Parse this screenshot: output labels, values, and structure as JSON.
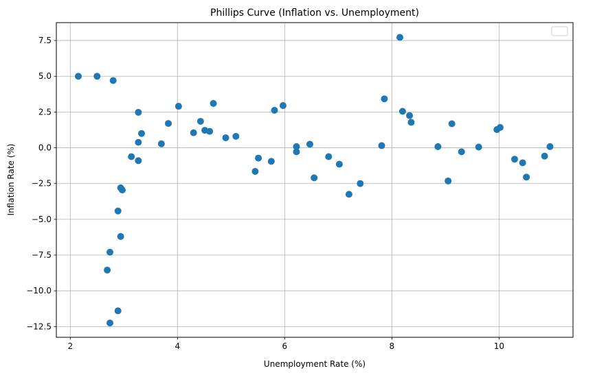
{
  "chart_data": {
    "type": "scatter",
    "title": "Phillips Curve (Inflation vs. Unemployment)",
    "xlabel": "Unemployment Rate (%)",
    "ylabel": "Inflation Rate (%)",
    "xlim": [
      1.74,
      11.38
    ],
    "ylim": [
      -13.25,
      8.75
    ],
    "xticks": [
      2,
      4,
      6,
      8,
      10
    ],
    "yticks": [
      -12.5,
      -10.0,
      -7.5,
      -5.0,
      -2.5,
      0.0,
      2.5,
      5.0,
      7.5
    ],
    "xtick_labels": [
      "2",
      "4",
      "6",
      "8",
      "10"
    ],
    "ytick_labels": [
      "−12.5",
      "−10.0",
      "−7.5",
      "−5.0",
      "−2.5",
      "0.0",
      "2.5",
      "5.0",
      "7.5"
    ],
    "grid": true,
    "legend": "top-right, empty",
    "series": [
      {
        "color": "#1f77b4",
        "points": [
          [
            2.15,
            5.0
          ],
          [
            2.5,
            5.0
          ],
          [
            2.8,
            4.7
          ],
          [
            3.27,
            2.48
          ],
          [
            3.27,
            0.38
          ],
          [
            3.27,
            -0.9
          ],
          [
            3.33,
            1.0
          ],
          [
            3.14,
            -0.62
          ],
          [
            2.94,
            -2.8
          ],
          [
            2.97,
            -2.95
          ],
          [
            2.89,
            -4.42
          ],
          [
            2.94,
            -6.2
          ],
          [
            2.74,
            -7.3
          ],
          [
            2.69,
            -8.55
          ],
          [
            2.89,
            -11.4
          ],
          [
            2.74,
            -12.25
          ],
          [
            3.7,
            0.28
          ],
          [
            3.83,
            1.7
          ],
          [
            4.02,
            2.9
          ],
          [
            4.3,
            1.05
          ],
          [
            4.43,
            1.85
          ],
          [
            4.51,
            1.22
          ],
          [
            4.6,
            1.15
          ],
          [
            4.67,
            3.1
          ],
          [
            4.9,
            0.7
          ],
          [
            5.09,
            0.8
          ],
          [
            5.45,
            -1.65
          ],
          [
            5.51,
            -0.72
          ],
          [
            5.75,
            -0.95
          ],
          [
            5.81,
            2.62
          ],
          [
            5.97,
            2.95
          ],
          [
            6.22,
            0.08
          ],
          [
            6.22,
            -0.28
          ],
          [
            6.47,
            0.25
          ],
          [
            6.55,
            -2.1
          ],
          [
            6.82,
            -0.62
          ],
          [
            7.02,
            -1.15
          ],
          [
            7.2,
            -3.25
          ],
          [
            7.41,
            -2.5
          ],
          [
            7.81,
            0.15
          ],
          [
            7.86,
            3.42
          ],
          [
            8.15,
            7.72
          ],
          [
            8.2,
            2.55
          ],
          [
            8.33,
            2.25
          ],
          [
            8.36,
            1.78
          ],
          [
            8.86,
            0.08
          ],
          [
            9.05,
            -2.32
          ],
          [
            9.12,
            1.68
          ],
          [
            9.3,
            -0.28
          ],
          [
            9.62,
            0.05
          ],
          [
            9.96,
            1.27
          ],
          [
            10.02,
            1.42
          ],
          [
            10.29,
            -0.8
          ],
          [
            10.44,
            -1.05
          ],
          [
            10.51,
            -2.05
          ],
          [
            10.85,
            -0.58
          ],
          [
            10.95,
            0.08
          ]
        ]
      }
    ]
  }
}
